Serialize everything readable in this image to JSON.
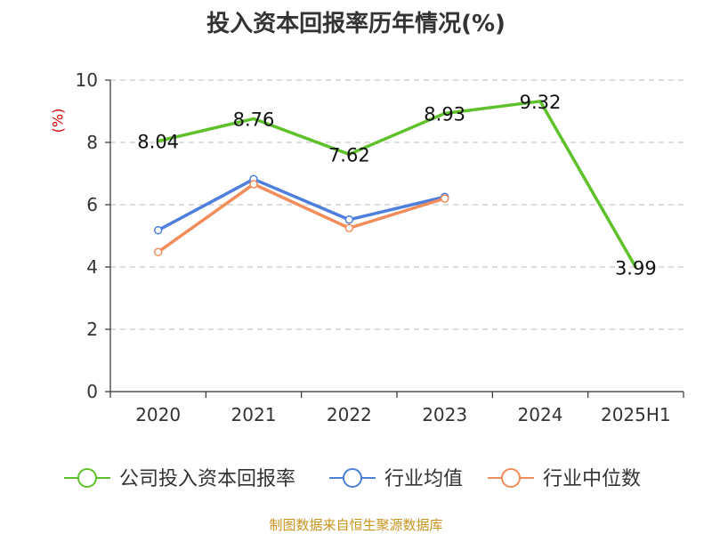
{
  "title": "投入资本回报率历年情况(%)",
  "unit_label": "(%)",
  "source": "制图数据来自恒生聚源数据库",
  "chart_data": {
    "type": "line",
    "title": "投入资本回报率历年情况(%)",
    "categories": [
      "2020",
      "2021",
      "2022",
      "2023",
      "2024",
      "2025H1"
    ],
    "ylim": [
      0,
      10
    ],
    "yticks": [
      0,
      2,
      4,
      6,
      8,
      10
    ],
    "grid": true,
    "legend_position": "bottom",
    "series": [
      {
        "name": "公司投入资本回报率",
        "color": "#5ec12a",
        "values": [
          8.04,
          8.76,
          7.62,
          8.93,
          9.32,
          3.99
        ],
        "labels": [
          "8.04",
          "8.76",
          "7.62",
          "8.93",
          "9.32",
          "3.99"
        ]
      },
      {
        "name": "行业均值",
        "color": "#4f7fdc",
        "values": [
          5.18,
          6.82,
          5.52,
          6.25,
          null,
          null
        ]
      },
      {
        "name": "行业中位数",
        "color": "#f28c5a",
        "values": [
          4.48,
          6.66,
          5.25,
          6.2,
          null,
          null
        ]
      }
    ]
  }
}
